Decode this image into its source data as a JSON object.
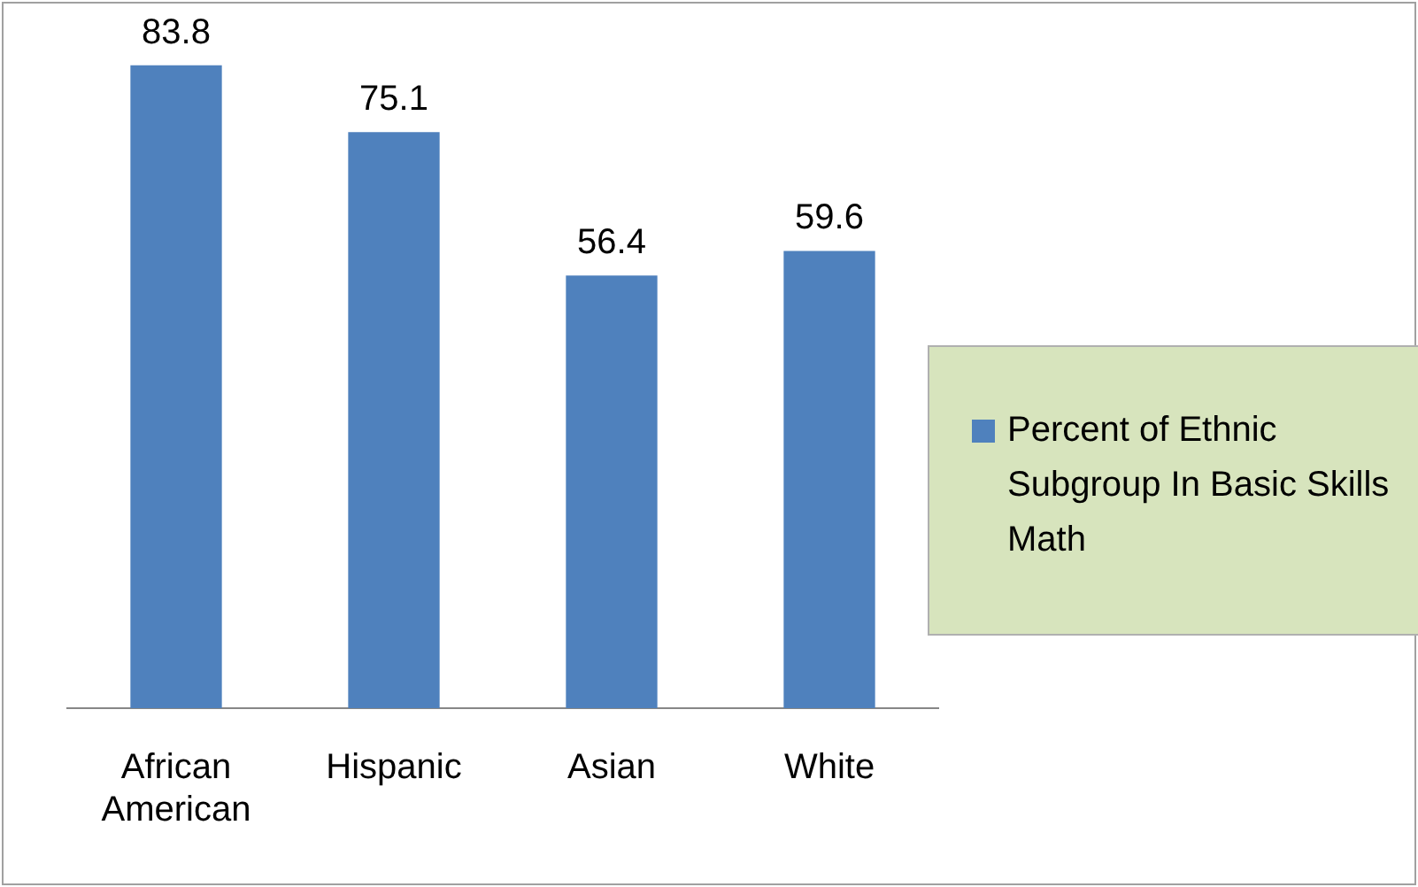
{
  "chart_data": {
    "type": "bar",
    "categories": [
      "African American",
      "Hispanic",
      "Asian",
      "White"
    ],
    "series": [
      {
        "name": "Percent of Ethnic Subgroup In Basic Skills Math",
        "color": "#4f81bd",
        "values": [
          83.8,
          75.1,
          56.4,
          59.6
        ]
      }
    ],
    "data_labels": true,
    "grid": false,
    "legend": "right"
  }
}
